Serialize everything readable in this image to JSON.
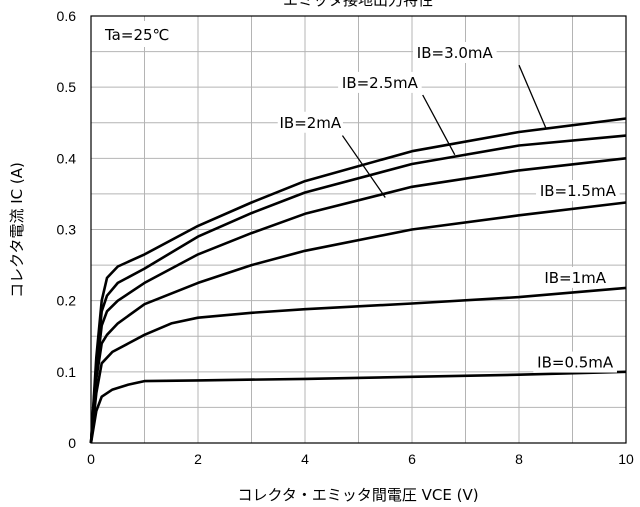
{
  "chart_data": {
    "type": "line",
    "title": "エミッタ接地出力特性",
    "xlabel": "コレクタ・エミッタ間電圧 VCE (V)",
    "ylabel": "コレクタ電流 IC (A)",
    "xlim": [
      0,
      10
    ],
    "ylim": [
      0,
      0.6
    ],
    "x_ticks": [
      "0",
      "2",
      "4",
      "6",
      "8",
      "10"
    ],
    "y_ticks": [
      "0",
      "0.1",
      "0.2",
      "0.3",
      "0.4",
      "0.5",
      "0.6"
    ],
    "grid": true,
    "annotation_box": "Ta=25℃",
    "series": [
      {
        "name": "IB=0.5mA",
        "points": [
          [
            0,
            0
          ],
          [
            0.1,
            0.045
          ],
          [
            0.2,
            0.065
          ],
          [
            0.4,
            0.075
          ],
          [
            0.7,
            0.082
          ],
          [
            1.0,
            0.087
          ],
          [
            2,
            0.088
          ],
          [
            4,
            0.09
          ],
          [
            6,
            0.093
          ],
          [
            8,
            0.096
          ],
          [
            10,
            0.1
          ]
        ]
      },
      {
        "name": "IB=1mA",
        "points": [
          [
            0,
            0
          ],
          [
            0.1,
            0.07
          ],
          [
            0.2,
            0.112
          ],
          [
            0.4,
            0.128
          ],
          [
            0.7,
            0.14
          ],
          [
            1.0,
            0.152
          ],
          [
            1.5,
            0.168
          ],
          [
            2,
            0.176
          ],
          [
            3,
            0.183
          ],
          [
            4,
            0.188
          ],
          [
            6,
            0.196
          ],
          [
            8,
            0.205
          ],
          [
            10,
            0.218
          ]
        ]
      },
      {
        "name": "IB=1.5mA",
        "points": [
          [
            0,
            0
          ],
          [
            0.1,
            0.09
          ],
          [
            0.2,
            0.14
          ],
          [
            0.3,
            0.152
          ],
          [
            0.5,
            0.168
          ],
          [
            1,
            0.195
          ],
          [
            2,
            0.225
          ],
          [
            3,
            0.25
          ],
          [
            4,
            0.27
          ],
          [
            6,
            0.3
          ],
          [
            8,
            0.32
          ],
          [
            10,
            0.338
          ]
        ]
      },
      {
        "name": "IB=2mA",
        "points": [
          [
            0,
            0
          ],
          [
            0.1,
            0.1
          ],
          [
            0.2,
            0.165
          ],
          [
            0.3,
            0.185
          ],
          [
            0.5,
            0.2
          ],
          [
            1,
            0.225
          ],
          [
            2,
            0.265
          ],
          [
            3,
            0.295
          ],
          [
            4,
            0.322
          ],
          [
            6,
            0.36
          ],
          [
            8,
            0.383
          ],
          [
            10,
            0.4
          ]
        ]
      },
      {
        "name": "IB=2.5mA",
        "points": [
          [
            0,
            0
          ],
          [
            0.1,
            0.11
          ],
          [
            0.2,
            0.185
          ],
          [
            0.3,
            0.207
          ],
          [
            0.5,
            0.225
          ],
          [
            1,
            0.245
          ],
          [
            2,
            0.29
          ],
          [
            3,
            0.323
          ],
          [
            4,
            0.352
          ],
          [
            6,
            0.392
          ],
          [
            8,
            0.418
          ],
          [
            10,
            0.432
          ]
        ]
      },
      {
        "name": "IB=3.0mA",
        "points": [
          [
            0,
            0
          ],
          [
            0.1,
            0.12
          ],
          [
            0.2,
            0.2
          ],
          [
            0.3,
            0.232
          ],
          [
            0.5,
            0.248
          ],
          [
            1,
            0.265
          ],
          [
            2,
            0.305
          ],
          [
            3,
            0.338
          ],
          [
            4,
            0.368
          ],
          [
            6,
            0.41
          ],
          [
            8,
            0.437
          ],
          [
            10,
            0.456
          ]
        ]
      }
    ],
    "series_labels": [
      {
        "text": "IB=3.0mA",
        "at": [
          6.8,
          0.548
        ],
        "pointer": [
          [
            8.0,
            0.531
          ],
          [
            8.5,
            0.443
          ]
        ]
      },
      {
        "text": "IB=2.5mA",
        "at": [
          5.4,
          0.506
        ],
        "pointer": [
          [
            6.2,
            0.489
          ],
          [
            6.8,
            0.405
          ]
        ]
      },
      {
        "text": "IB=2mA",
        "at": [
          4.1,
          0.45
        ],
        "pointer": [
          [
            4.7,
            0.432
          ],
          [
            5.5,
            0.345
          ]
        ]
      },
      {
        "text": "IB=1.5mA",
        "at": [
          9.1,
          0.354
        ],
        "pointer": null
      },
      {
        "text": "IB=1mA",
        "at": [
          9.05,
          0.232
        ],
        "pointer": null
      },
      {
        "text": "IB=0.5mA",
        "at": [
          9.05,
          0.113
        ],
        "pointer": null
      }
    ]
  }
}
